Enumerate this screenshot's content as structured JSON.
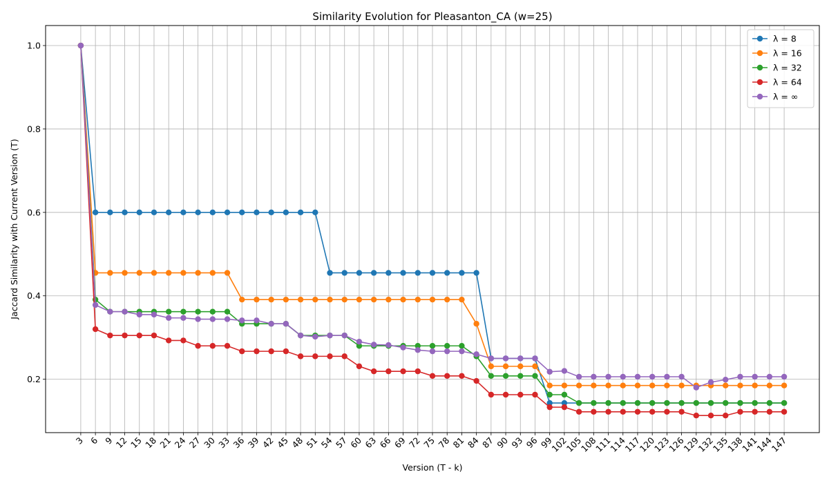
{
  "chart_data": {
    "type": "line",
    "title": "Similarity Evolution for Pleasanton_CA (w=25)",
    "xlabel": "Version (T - k)",
    "ylabel": "Jaccard Similarity with Current Version (T)",
    "x": [
      3,
      6,
      9,
      12,
      15,
      18,
      21,
      24,
      27,
      30,
      33,
      36,
      39,
      42,
      45,
      48,
      51,
      54,
      57,
      60,
      63,
      66,
      69,
      72,
      75,
      78,
      81,
      84,
      87,
      90,
      93,
      96,
      99,
      102,
      105,
      108,
      111,
      114,
      117,
      120,
      123,
      126,
      129,
      132,
      135,
      138,
      141,
      144,
      147
    ],
    "ylim": [
      0.072,
      1.048
    ],
    "yticks": [
      0.2,
      0.4,
      0.6,
      0.8,
      1.0
    ],
    "ytick_labels": [
      "0.2",
      "0.4",
      "0.6",
      "0.8",
      "1.0"
    ],
    "grid": true,
    "legend_position": "upper right",
    "series": [
      {
        "name": "λ = 8",
        "color": "#1f77b4",
        "values": [
          1.0,
          0.6,
          0.6,
          0.6,
          0.6,
          0.6,
          0.6,
          0.6,
          0.6,
          0.6,
          0.6,
          0.6,
          0.6,
          0.6,
          0.6,
          0.6,
          0.6,
          0.455,
          0.455,
          0.455,
          0.455,
          0.455,
          0.455,
          0.455,
          0.455,
          0.455,
          0.455,
          0.455,
          0.25,
          0.25,
          0.25,
          0.25,
          0.143,
          0.143,
          0.143,
          0.143,
          0.143,
          0.143,
          0.143,
          0.143,
          0.143,
          0.143,
          0.143,
          0.143,
          0.143,
          0.143,
          0.143,
          0.143,
          0.143
        ]
      },
      {
        "name": "λ = 16",
        "color": "#ff7f0e",
        "values": [
          1.0,
          0.455,
          0.455,
          0.455,
          0.455,
          0.455,
          0.455,
          0.455,
          0.455,
          0.455,
          0.455,
          0.391,
          0.391,
          0.391,
          0.391,
          0.391,
          0.391,
          0.391,
          0.391,
          0.391,
          0.391,
          0.391,
          0.391,
          0.391,
          0.391,
          0.391,
          0.391,
          0.333,
          0.231,
          0.231,
          0.231,
          0.231,
          0.185,
          0.185,
          0.185,
          0.185,
          0.185,
          0.185,
          0.185,
          0.185,
          0.185,
          0.185,
          0.185,
          0.185,
          0.185,
          0.185,
          0.185,
          0.185,
          0.185
        ]
      },
      {
        "name": "λ = 32",
        "color": "#2ca02c",
        "values": [
          1.0,
          0.391,
          0.362,
          0.362,
          0.362,
          0.362,
          0.362,
          0.362,
          0.362,
          0.362,
          0.362,
          0.333,
          0.333,
          0.333,
          0.333,
          0.305,
          0.305,
          0.305,
          0.305,
          0.28,
          0.28,
          0.28,
          0.28,
          0.28,
          0.28,
          0.28,
          0.28,
          0.255,
          0.208,
          0.208,
          0.208,
          0.208,
          0.163,
          0.163,
          0.143,
          0.143,
          0.143,
          0.143,
          0.143,
          0.143,
          0.143,
          0.143,
          0.143,
          0.143,
          0.143,
          0.143,
          0.143,
          0.143,
          0.143
        ]
      },
      {
        "name": "λ = 64",
        "color": "#d62728",
        "values": [
          1.0,
          0.32,
          0.305,
          0.305,
          0.305,
          0.305,
          0.293,
          0.293,
          0.28,
          0.28,
          0.28,
          0.267,
          0.267,
          0.267,
          0.267,
          0.255,
          0.255,
          0.255,
          0.255,
          0.231,
          0.219,
          0.219,
          0.219,
          0.219,
          0.208,
          0.208,
          0.208,
          0.196,
          0.163,
          0.163,
          0.163,
          0.163,
          0.133,
          0.133,
          0.122,
          0.122,
          0.122,
          0.122,
          0.122,
          0.122,
          0.122,
          0.122,
          0.113,
          0.113,
          0.113,
          0.122,
          0.122,
          0.122,
          0.122
        ]
      },
      {
        "name": "λ = ∞",
        "color": "#9467bd",
        "values": [
          1.0,
          0.378,
          0.362,
          0.362,
          0.355,
          0.355,
          0.347,
          0.347,
          0.344,
          0.344,
          0.344,
          0.341,
          0.341,
          0.333,
          0.333,
          0.305,
          0.302,
          0.305,
          0.305,
          0.29,
          0.283,
          0.282,
          0.276,
          0.27,
          0.267,
          0.267,
          0.267,
          0.26,
          0.25,
          0.25,
          0.25,
          0.25,
          0.218,
          0.22,
          0.206,
          0.206,
          0.206,
          0.206,
          0.206,
          0.206,
          0.206,
          0.206,
          0.18,
          0.193,
          0.199,
          0.206,
          0.206,
          0.206,
          0.206
        ]
      }
    ]
  }
}
